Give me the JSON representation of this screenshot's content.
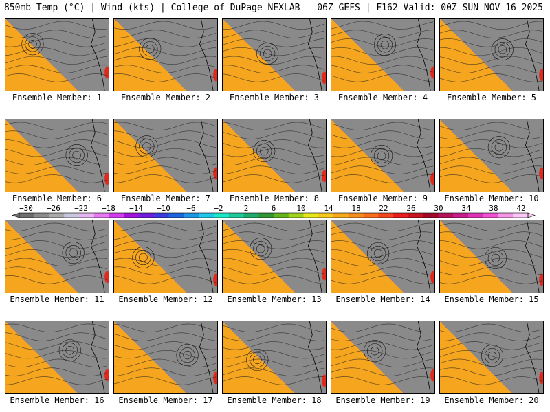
{
  "header": {
    "left": "850mb Temp (°C) | Wind (kts) | College of DuPage NEXLAB",
    "right": "06Z GEFS | F162 Valid: 00Z SUN NOV 16 2025"
  },
  "members": [
    {
      "label": "Ensemble Member: 1"
    },
    {
      "label": "Ensemble Member: 2"
    },
    {
      "label": "Ensemble Member: 3"
    },
    {
      "label": "Ensemble Member: 4"
    },
    {
      "label": "Ensemble Member: 5"
    },
    {
      "label": "Ensemble Member: 6"
    },
    {
      "label": "Ensemble Member: 7"
    },
    {
      "label": "Ensemble Member: 8"
    },
    {
      "label": "Ensemble Member: 9"
    },
    {
      "label": "Ensemble Member: 10"
    },
    {
      "label": "Ensemble Member: 11"
    },
    {
      "label": "Ensemble Member: 12"
    },
    {
      "label": "Ensemble Member: 13"
    },
    {
      "label": "Ensemble Member: 14"
    },
    {
      "label": "Ensemble Member: 15"
    },
    {
      "label": "Ensemble Member: 16"
    },
    {
      "label": "Ensemble Member: 17"
    },
    {
      "label": "Ensemble Member: 18"
    },
    {
      "label": "Ensemble Member: 19"
    },
    {
      "label": "Ensemble Member: 20"
    }
  ],
  "colorbar": {
    "labels": [
      "−30",
      "−26",
      "−22",
      "−18",
      "−14",
      "−10",
      "−6",
      "−2",
      "2",
      "6",
      "10",
      "14",
      "18",
      "22",
      "26",
      "30",
      "34",
      "38",
      "42"
    ],
    "colors": [
      "#6e6e6e",
      "#8c8c8c",
      "#aaaaaa",
      "#c8c8dc",
      "#e6b4f0",
      "#e678f0",
      "#d23cf0",
      "#a014dc",
      "#6e1edc",
      "#3c3cdc",
      "#1e64dc",
      "#1e96e6",
      "#1ec8e6",
      "#1ee6c8",
      "#1ec89b",
      "#1eaa6e",
      "#329632",
      "#64b41e",
      "#a0d21e",
      "#e6e61e",
      "#f5c81e",
      "#f5aa1e",
      "#f58c1e",
      "#f56e1e",
      "#f0461e",
      "#e61e1e",
      "#c8141e",
      "#a00a28",
      "#b4145a",
      "#c81e8c",
      "#dc32b4",
      "#f050d2",
      "#f596e6",
      "#fac8f5"
    ]
  }
}
